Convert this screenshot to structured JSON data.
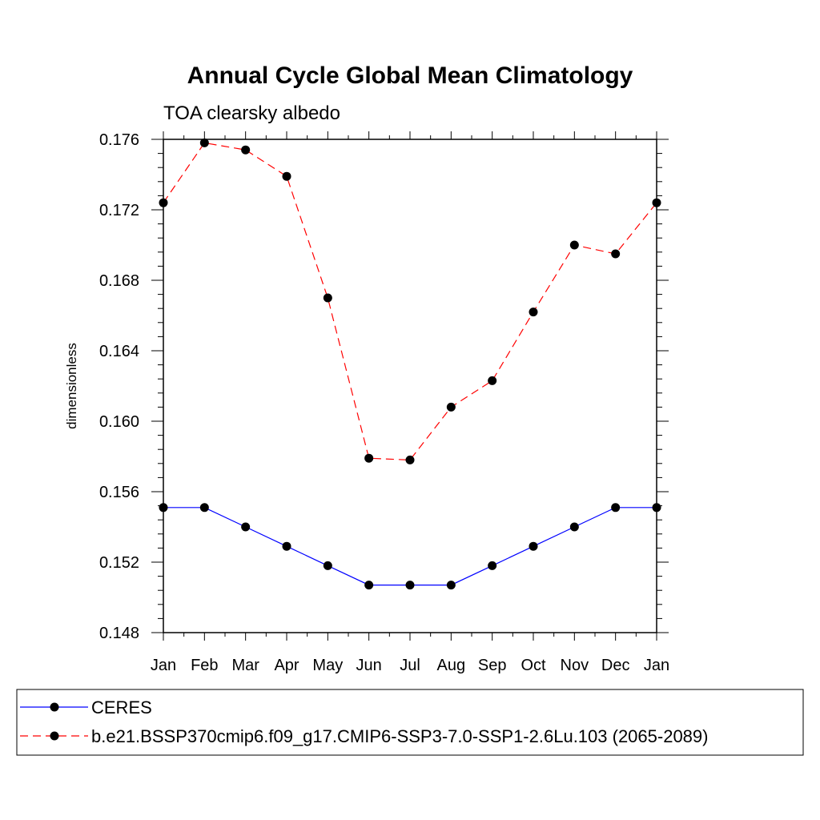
{
  "chart_data": {
    "type": "line",
    "title": "Annual Cycle Global Mean Climatology",
    "subtitle": "TOA clearsky albedo",
    "ylabel": "dimensionless",
    "xlabel": "",
    "categories": [
      "Jan",
      "Feb",
      "Mar",
      "Apr",
      "May",
      "Jun",
      "Jul",
      "Aug",
      "Sep",
      "Oct",
      "Nov",
      "Dec",
      "Jan"
    ],
    "ylim": [
      0.148,
      0.176
    ],
    "yticks": [
      "0.148",
      "0.152",
      "0.156",
      "0.160",
      "0.164",
      "0.168",
      "0.172",
      "0.176"
    ],
    "grid": false,
    "legend_position": "bottom",
    "series": [
      {
        "name": "CERES",
        "color": "#0000ff",
        "line_style": "solid",
        "marker": "filled-circle",
        "values": [
          0.1551,
          0.1551,
          0.154,
          0.1529,
          0.1518,
          0.1507,
          0.1507,
          0.1507,
          0.1518,
          0.1529,
          0.154,
          0.1551,
          0.1551
        ]
      },
      {
        "name": "b.e21.BSSP370cmip6.f09_g17.CMIP6-SSP3-7.0-SSP1-2.6Lu.103 (2065-2089)",
        "color": "#ff0000",
        "line_style": "dashed",
        "marker": "filled-circle",
        "values": [
          0.1724,
          0.1758,
          0.1754,
          0.1739,
          0.167,
          0.1579,
          0.1578,
          0.1608,
          0.1623,
          0.1662,
          0.17,
          0.1695,
          0.1724
        ]
      }
    ]
  }
}
